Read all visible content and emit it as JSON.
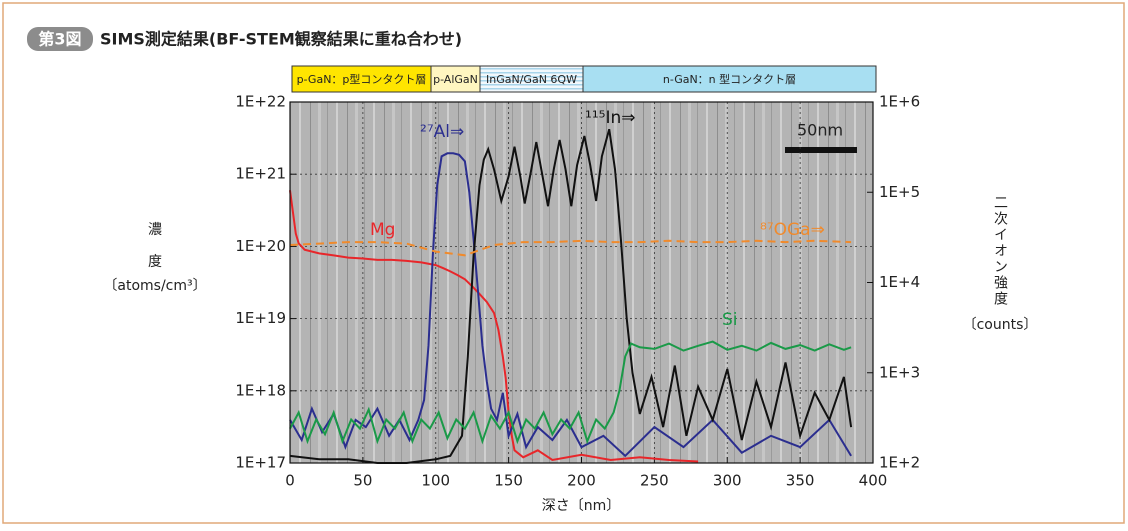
{
  "chart_data": {
    "type": "line",
    "figure_label": "第3図",
    "title": "SIMS測定結果(BF-STEM観察結果に重ね合わせ)",
    "layers": [
      "p-GaN：p型コンタクト層",
      "p-AlGaN",
      "InGaN/GaN 6QW",
      "n-GaN：n 型コンタクト層"
    ],
    "scale_bar": "50nm",
    "xlabel": "深さ〔nm〕",
    "ylabel": [
      "濃",
      "度",
      "〔atoms/cm³〕"
    ],
    "y2label": [
      "二次イオン強度",
      "〔counts〕"
    ],
    "xlim": [
      0,
      400
    ],
    "xticks": [
      0,
      50,
      100,
      150,
      200,
      250,
      300,
      350,
      400
    ],
    "ylog": true,
    "ylim": [
      1e+17,
      1e+22
    ],
    "yticks": [
      {
        "value": 1e+17,
        "label": "1E+17"
      },
      {
        "value": 1e+18,
        "label": "1E+18"
      },
      {
        "value": 1e+19,
        "label": "1E+19"
      },
      {
        "value": 1e+20,
        "label": "1E+20"
      },
      {
        "value": 1e+21,
        "label": "1E+21"
      },
      {
        "value": 1e+22,
        "label": "1E+22"
      }
    ],
    "y2lim": [
      100,
      1000000
    ],
    "y2ticks": [
      {
        "value": 100,
        "label": "1E+2"
      },
      {
        "value": 1000,
        "label": "1E+3"
      },
      {
        "value": 10000,
        "label": "1E+4"
      },
      {
        "value": 100000,
        "label": "1E+5"
      },
      {
        "value": 1000000,
        "label": "1E+6"
      }
    ],
    "grid": true,
    "series": [
      {
        "name": "Mg",
        "color": "#e8262a",
        "x": [
          0,
          2,
          4,
          6,
          10,
          20,
          30,
          40,
          50,
          60,
          70,
          80,
          90,
          100,
          105,
          110,
          115,
          120,
          125,
          130,
          135,
          140,
          143,
          146,
          148,
          150,
          152,
          154,
          160,
          170,
          180,
          200,
          220,
          240,
          260,
          280
        ],
        "values": [
          6e+20,
          3e+20,
          1.5e+20,
          1.1e+20,
          9e+19,
          8e+19,
          7.5e+19,
          7e+19,
          6.8e+19,
          6.5e+19,
          6.5e+19,
          6.3e+19,
          6e+19,
          5.5e+19,
          5e+19,
          4.5e+19,
          4e+19,
          3.5e+19,
          2.8e+19,
          2.2e+19,
          1.7e+19,
          1.2e+19,
          7e+18,
          3e+18,
          1.5e+18,
          5e+17,
          2.5e+17,
          1.5e+17,
          1.2e+17,
          1.5e+17,
          1.1e+17,
          1.3e+17,
          1.1e+17,
          1.2e+17,
          1.1e+17,
          1.05e+17
        ]
      },
      {
        "name": "²⁷Al⇒",
        "color": "#2b2e8f",
        "axis": "y2",
        "x": [
          0,
          8,
          15,
          22,
          30,
          38,
          45,
          52,
          60,
          68,
          75,
          82,
          88,
          92,
          95,
          98,
          101,
          104,
          108,
          112,
          116,
          120,
          123,
          126,
          129,
          132,
          135,
          138,
          142,
          146,
          150,
          156,
          162,
          170,
          180,
          190,
          200,
          215,
          230,
          250,
          270,
          290,
          310,
          330,
          350,
          370,
          385
        ],
        "values": [
          300,
          180,
          400,
          220,
          350,
          150,
          300,
          250,
          400,
          200,
          300,
          180,
          300,
          500,
          2000,
          20000,
          120000,
          250000,
          270000,
          270000,
          260000,
          220000,
          100000,
          30000,
          8000,
          2000,
          800,
          400,
          300,
          600,
          200,
          350,
          150,
          250,
          180,
          300,
          150,
          200,
          120,
          250,
          150,
          300,
          130,
          200,
          150,
          300,
          120
        ]
      },
      {
        "name": "¹¹⁵In⇒",
        "color": "#111111",
        "axis": "y2",
        "x": [
          0,
          20,
          40,
          60,
          80,
          100,
          110,
          118,
          122,
          126,
          130,
          133,
          136,
          140,
          145,
          150,
          154,
          158,
          161,
          165,
          169,
          173,
          177,
          181,
          185,
          189,
          193,
          197,
          202,
          206,
          210,
          214,
          219,
          223,
          227,
          231,
          235,
          240,
          248,
          256,
          264,
          272,
          280,
          290,
          300,
          310,
          320,
          330,
          340,
          350,
          360,
          370,
          380,
          385
        ],
        "values": [
          120,
          110,
          110,
          100,
          100,
          110,
          120,
          200,
          1500,
          20000,
          120000,
          230000,
          300000,
          180000,
          80000,
          150000,
          320000,
          150000,
          75000,
          160000,
          360000,
          160000,
          70000,
          180000,
          380000,
          180000,
          70000,
          200000,
          420000,
          200000,
          80000,
          250000,
          500000,
          180000,
          30000,
          4000,
          1000,
          350,
          900,
          250,
          1200,
          200,
          700,
          300,
          1100,
          180,
          800,
          250,
          1300,
          200,
          600,
          300,
          900,
          250
        ]
      },
      {
        "name": "⁸⁷OGa⇒",
        "color": "#f08a2c",
        "axis": "y2",
        "dashed": true,
        "x": [
          0,
          20,
          40,
          60,
          80,
          100,
          120,
          140,
          160,
          180,
          200,
          220,
          240,
          260,
          280,
          300,
          320,
          340,
          360,
          385
        ],
        "values": [
          26000,
          27000,
          28000,
          28000,
          27000,
          22000,
          20000,
          26000,
          28000,
          28000,
          29000,
          28000,
          28000,
          29000,
          28000,
          28000,
          29000,
          28000,
          29000,
          28000
        ]
      },
      {
        "name": "Si",
        "color": "#1a9a48",
        "x": [
          0,
          6,
          12,
          18,
          24,
          30,
          36,
          42,
          48,
          54,
          60,
          66,
          72,
          78,
          84,
          90,
          96,
          102,
          108,
          114,
          120,
          126,
          132,
          138,
          144,
          150,
          156,
          162,
          168,
          174,
          180,
          186,
          192,
          198,
          204,
          210,
          216,
          222,
          226,
          230,
          234,
          240,
          250,
          260,
          270,
          280,
          290,
          300,
          310,
          320,
          330,
          340,
          350,
          360,
          370,
          380,
          385
        ],
        "values": [
          3e+17,
          5e+17,
          2e+17,
          4e+17,
          2.5e+17,
          5e+17,
          2e+17,
          4e+17,
          3e+17,
          5.5e+17,
          2e+17,
          4e+17,
          3e+17,
          5e+17,
          2e+17,
          4e+17,
          3e+17,
          5e+17,
          2.2e+17,
          4e+17,
          3e+17,
          5e+17,
          2e+17,
          4.5e+17,
          3e+17,
          5e+17,
          2e+17,
          4e+17,
          3e+17,
          5e+17,
          2.5e+17,
          4e+17,
          3e+17,
          5e+17,
          2e+17,
          4e+17,
          3e+17,
          5e+17,
          1e+18,
          3e+18,
          4.5e+18,
          4e+18,
          3.8e+18,
          4.5e+18,
          3.6e+18,
          4.2e+18,
          4.8e+18,
          3.7e+18,
          4.2e+18,
          3.6e+18,
          4.6e+18,
          3.8e+18,
          4.3e+18,
          3.6e+18,
          4.4e+18,
          3.7e+18,
          4e+18
        ]
      }
    ]
  }
}
